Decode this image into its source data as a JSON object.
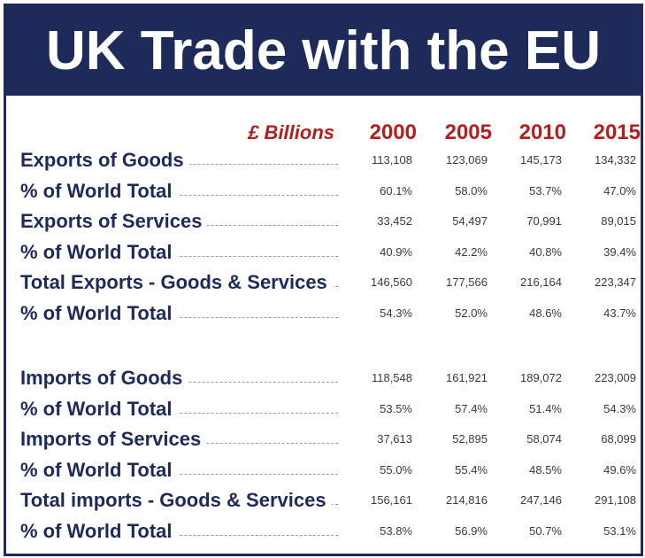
{
  "title": "UK Trade with the EU",
  "chart_data": {
    "type": "table",
    "title": "UK Trade with the EU",
    "unit_label": "£ Billions",
    "columns": [
      "2000",
      "2005",
      "2010",
      "2015"
    ],
    "rows": [
      {
        "label": "Exports of Goods",
        "values": [
          "113,108",
          "123,069",
          "145,173",
          "134,332"
        ]
      },
      {
        "label": "% of World Total",
        "values": [
          "60.1%",
          "58.0%",
          "53.7%",
          "47.0%"
        ]
      },
      {
        "label": "Exports of Services",
        "values": [
          "33,452",
          "54,497",
          "70,991",
          "89,015"
        ]
      },
      {
        "label": "% of World Total",
        "values": [
          "40.9%",
          "42.2%",
          "40.8%",
          "39.4%"
        ]
      },
      {
        "label": "Total Exports - Goods & Services",
        "values": [
          "146,560",
          "177,566",
          "216,164",
          "223,347"
        ]
      },
      {
        "label": "% of World Total",
        "values": [
          "54.3%",
          "52.0%",
          "48.6%",
          "43.7%"
        ]
      },
      {
        "label": "Imports of Goods",
        "values": [
          "118,548",
          "161,921",
          "189,072",
          "223,009"
        ]
      },
      {
        "label": "% of World Total",
        "values": [
          "53.5%",
          "57.4%",
          "51.4%",
          "54.3%"
        ]
      },
      {
        "label": "Imports of Services",
        "values": [
          "37,613",
          "52,895",
          "58,074",
          "68,099"
        ]
      },
      {
        "label": "% of World Total",
        "values": [
          "55.0%",
          "55.4%",
          "48.5%",
          "49.6%"
        ]
      },
      {
        "label": "Total imports - Goods & Services",
        "values": [
          "156,161",
          "214,816",
          "247,146",
          "291,108"
        ]
      },
      {
        "label": "% of World Total",
        "values": [
          "53.8%",
          "56.9%",
          "50.7%",
          "53.1%"
        ]
      }
    ]
  },
  "colors": {
    "title_bg": "#1d2a5a",
    "title_text": "#ffffff",
    "row_label": "#1d2a5a",
    "header": "#b21f1f",
    "value_text": "#3a3a3a"
  }
}
